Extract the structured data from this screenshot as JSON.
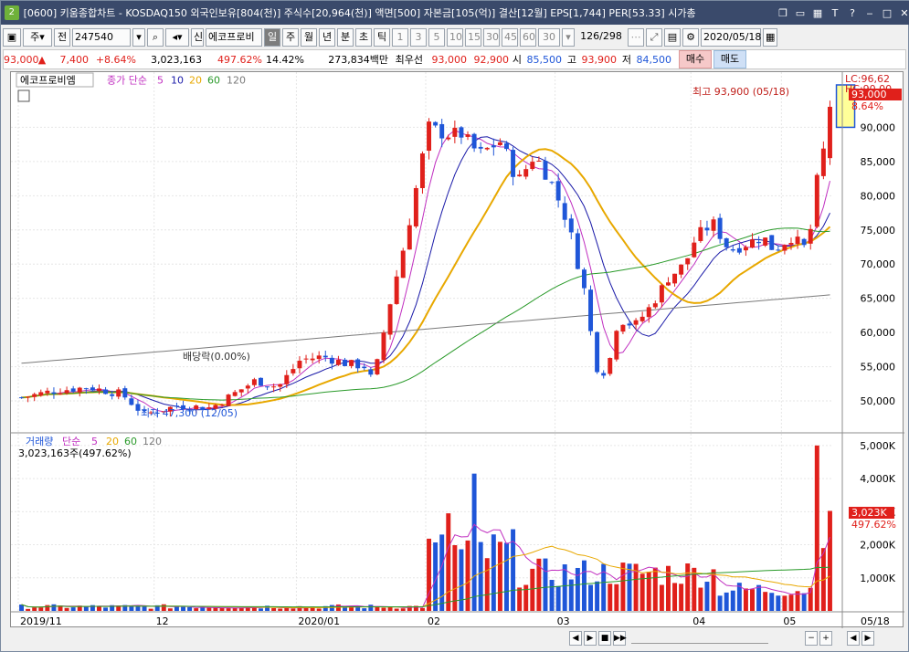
{
  "window": {
    "title": "[0600] 키움종합차트 - KOSDAQ150 외국인보유[804(천)] 주식수[20,964(천)] 액면[500] 자본금[105(억)] 결산[12월] EPS[1,744] PER[53.33] 시가총",
    "app_icon": "2",
    "buttons": [
      "restore-icon",
      "window-icon",
      "tile-icon",
      "T",
      "?",
      "minimize-icon",
      "maximize-icon",
      "close-icon"
    ]
  },
  "toolbar": {
    "period": "주",
    "prev_label": "전",
    "code": "247540",
    "name": "에코프로비",
    "name_prefix": "신",
    "tabs": [
      "일",
      "주",
      "월",
      "년",
      "분",
      "초",
      "틱"
    ],
    "intervals": [
      "1",
      "3",
      "5",
      "10",
      "15",
      "30",
      "45",
      "60"
    ],
    "interval_value": "30",
    "count": "126/298",
    "date": "2020/05/18"
  },
  "quote": {
    "price": "93,000",
    "direction": "▲",
    "change": "7,400",
    "change_pct": "+8.64%",
    "volume": "3,023,163",
    "volume_pct": "497.62%",
    "turnover": "14.42%",
    "amount": "273,834백만",
    "best_label": "최우선",
    "ask": "93,000",
    "bid": "92,900",
    "open_label": "시",
    "open": "85,500",
    "high_label": "고",
    "high": "93,900",
    "low_label": "저",
    "low": "84,500",
    "buy_label": "매수",
    "sell_label": "매도"
  },
  "price_panel": {
    "item_label": "에코프로비엠",
    "ma_prefix": "종가 단순",
    "ma_periods": [
      "5",
      "10",
      "20",
      "60",
      "120"
    ],
    "lc_label": "LC:96,62",
    "hc_label": "HC:90,00",
    "current_value": "93,000",
    "current_pct": "8.64%",
    "high_note": "최고 93,900 (05/18)",
    "low_note": "최저 47,300 (12/05)",
    "dividend_note": "배당락(0.00%)",
    "y_ticks": [
      "90,000",
      "85,000",
      "80,000",
      "75,000",
      "70,000",
      "65,000",
      "60,000",
      "55,000",
      "50,000"
    ]
  },
  "volume_panel": {
    "label": "거래량",
    "ma_prefix": "단순",
    "ma_periods": [
      "5",
      "20",
      "60",
      "120"
    ],
    "today": "3,023,163주(497.62%)",
    "current_value": "3,023K",
    "current_pct": "497.62%",
    "y_ticks": [
      "5,000K",
      "4,000K",
      "3,000K",
      "2,000K",
      "1,000K"
    ]
  },
  "x_axis": {
    "labels": [
      "2019/11",
      "12",
      "2020/01",
      "02",
      "03",
      "04",
      "05",
      "05/18"
    ]
  },
  "colors": {
    "up": "#e0201b",
    "down": "#1f56d8",
    "ma5": "#c02fc0",
    "ma10": "#1a1aa8",
    "ma20": "#e8a800",
    "ma60": "#2a9a2a",
    "ma120": "#7a7a7a"
  },
  "chart_data": {
    "type": "candlestick",
    "x": [
      "2019/11",
      "12",
      "2020/01",
      "02",
      "03",
      "04",
      "05",
      "05/18"
    ],
    "ylim": [
      46000,
      97000
    ],
    "volume_ylim": [
      0,
      5300
    ],
    "candles": [],
    "volume": []
  }
}
